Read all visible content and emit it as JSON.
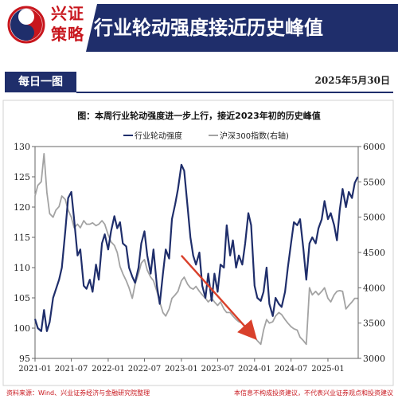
{
  "header": {
    "brand_line1": "兴证",
    "brand_line2": "策略",
    "title": "行业轮动强度接近历史峰值"
  },
  "banner": {
    "tab_label": "每日一图",
    "date": "2025年5月30日"
  },
  "chart_data": {
    "type": "line",
    "title": "图：本周行业轮动强度进一步上行，接近2023年初的历史峰值",
    "x_tick_labels": [
      "2021-01",
      "2021-07",
      "2022-01",
      "2022-07",
      "2023-01",
      "2023-07",
      "2024-01",
      "2024-07",
      "2025-01"
    ],
    "xlim": [
      "2021-01",
      "2025-06"
    ],
    "y_left": {
      "ylim": [
        95,
        130
      ],
      "ticks": [
        95,
        100,
        105,
        110,
        115,
        120,
        125,
        130
      ]
    },
    "y_right": {
      "ylim": [
        3000,
        6000
      ],
      "ticks": [
        3000,
        3500,
        4000,
        4500,
        5000,
        5500,
        6000
      ]
    },
    "series": [
      {
        "name": "行业轮动强度",
        "axis": "left",
        "color": "#1f2e6b",
        "points": [
          [
            "2021-01-01",
            101.5
          ],
          [
            "2021-01-15",
            100.0
          ],
          [
            "2021-02-01",
            99.5
          ],
          [
            "2021-02-15",
            103.0
          ],
          [
            "2021-03-01",
            99.5
          ],
          [
            "2021-03-15",
            101.0
          ],
          [
            "2021-04-01",
            105.0
          ],
          [
            "2021-05-01",
            108.0
          ],
          [
            "2021-05-15",
            110.0
          ],
          [
            "2021-06-01",
            116.0
          ],
          [
            "2021-06-15",
            121.5
          ],
          [
            "2021-07-01",
            122.5
          ],
          [
            "2021-07-15",
            118.0
          ],
          [
            "2021-08-01",
            112.0
          ],
          [
            "2021-08-15",
            113.0
          ],
          [
            "2021-09-01",
            107.0
          ],
          [
            "2021-09-15",
            106.5
          ],
          [
            "2021-10-01",
            108.0
          ],
          [
            "2021-10-15",
            106.0
          ],
          [
            "2021-11-01",
            110.5
          ],
          [
            "2021-11-15",
            108.0
          ],
          [
            "2021-12-01",
            114.0
          ],
          [
            "2021-12-15",
            115.5
          ],
          [
            "2022-01-01",
            113.0
          ],
          [
            "2022-01-15",
            116.0
          ],
          [
            "2022-02-01",
            118.5
          ],
          [
            "2022-02-15",
            116.5
          ],
          [
            "2022-03-01",
            117.5
          ],
          [
            "2022-03-15",
            114.0
          ],
          [
            "2022-04-01",
            113.5
          ],
          [
            "2022-04-15",
            110.0
          ],
          [
            "2022-05-01",
            108.5
          ],
          [
            "2022-05-15",
            107.5
          ],
          [
            "2022-06-01",
            110.0
          ],
          [
            "2022-06-15",
            114.0
          ],
          [
            "2022-07-01",
            116.0
          ],
          [
            "2022-07-15",
            112.0
          ],
          [
            "2022-08-01",
            109.0
          ],
          [
            "2022-08-15",
            113.0
          ],
          [
            "2022-09-01",
            107.0
          ],
          [
            "2022-09-15",
            104.0
          ],
          [
            "2022-10-01",
            109.0
          ],
          [
            "2022-10-15",
            113.0
          ],
          [
            "2022-11-01",
            111.5
          ],
          [
            "2022-11-15",
            118.0
          ],
          [
            "2022-12-01",
            120.5
          ],
          [
            "2022-12-15",
            123.0
          ],
          [
            "2023-01-01",
            127.0
          ],
          [
            "2023-01-15",
            126.0
          ],
          [
            "2023-02-01",
            120.0
          ],
          [
            "2023-02-15",
            115.0
          ],
          [
            "2023-03-01",
            112.0
          ],
          [
            "2023-03-15",
            110.5
          ],
          [
            "2023-04-01",
            112.5
          ],
          [
            "2023-04-15",
            107.0
          ],
          [
            "2023-05-01",
            105.0
          ],
          [
            "2023-05-15",
            109.0
          ],
          [
            "2023-06-01",
            104.5
          ],
          [
            "2023-06-15",
            109.0
          ],
          [
            "2023-07-01",
            106.0
          ],
          [
            "2023-07-15",
            110.5
          ],
          [
            "2023-08-01",
            110.0
          ],
          [
            "2023-08-15",
            117.0
          ],
          [
            "2023-09-01",
            112.0
          ],
          [
            "2023-09-15",
            114.5
          ],
          [
            "2023-10-01",
            110.0
          ],
          [
            "2023-10-15",
            112.0
          ],
          [
            "2023-11-01",
            110.5
          ],
          [
            "2023-11-15",
            114.0
          ],
          [
            "2023-12-01",
            119.0
          ],
          [
            "2023-12-15",
            117.0
          ],
          [
            "2024-01-01",
            107.0
          ],
          [
            "2024-01-15",
            105.0
          ],
          [
            "2024-02-01",
            104.5
          ],
          [
            "2024-02-15",
            106.0
          ],
          [
            "2024-03-01",
            110.0
          ],
          [
            "2024-03-15",
            104.0
          ],
          [
            "2024-04-01",
            102.0
          ],
          [
            "2024-04-15",
            105.0
          ],
          [
            "2024-05-01",
            104.0
          ],
          [
            "2024-05-15",
            103.5
          ],
          [
            "2024-06-01",
            106.0
          ],
          [
            "2024-06-15",
            110.0
          ],
          [
            "2024-07-01",
            114.0
          ],
          [
            "2024-07-15",
            117.5
          ],
          [
            "2024-08-01",
            117.0
          ],
          [
            "2024-08-15",
            118.0
          ],
          [
            "2024-09-01",
            113.0
          ],
          [
            "2024-09-15",
            108.0
          ],
          [
            "2024-10-01",
            114.0
          ],
          [
            "2024-10-15",
            115.0
          ],
          [
            "2024-11-01",
            114.0
          ],
          [
            "2024-11-15",
            116.5
          ],
          [
            "2024-12-01",
            118.0
          ],
          [
            "2024-12-15",
            121.0
          ],
          [
            "2025-01-01",
            118.0
          ],
          [
            "2025-01-15",
            119.0
          ],
          [
            "2025-02-01",
            117.0
          ],
          [
            "2025-02-15",
            114.5
          ],
          [
            "2025-03-01",
            119.5
          ],
          [
            "2025-03-15",
            123.0
          ],
          [
            "2025-04-01",
            120.0
          ],
          [
            "2025-04-15",
            122.5
          ],
          [
            "2025-05-01",
            121.5
          ],
          [
            "2025-05-15",
            124.0
          ],
          [
            "2025-05-30",
            125.0
          ]
        ]
      },
      {
        "name": "沪深300指数(右轴)",
        "axis": "right",
        "color": "#a3a3a3",
        "points": [
          [
            "2021-01-01",
            5300
          ],
          [
            "2021-01-15",
            5450
          ],
          [
            "2021-02-01",
            5500
          ],
          [
            "2021-02-15",
            5900
          ],
          [
            "2021-03-01",
            5350
          ],
          [
            "2021-03-15",
            5050
          ],
          [
            "2021-04-01",
            5000
          ],
          [
            "2021-04-15",
            5100
          ],
          [
            "2021-05-01",
            5150
          ],
          [
            "2021-05-15",
            5300
          ],
          [
            "2021-06-01",
            5250
          ],
          [
            "2021-06-15",
            5100
          ],
          [
            "2021-07-01",
            5000
          ],
          [
            "2021-07-15",
            4850
          ],
          [
            "2021-08-01",
            4900
          ],
          [
            "2021-08-15",
            4850
          ],
          [
            "2021-09-01",
            4950
          ],
          [
            "2021-09-15",
            4900
          ],
          [
            "2021-10-01",
            4900
          ],
          [
            "2021-10-15",
            4920
          ],
          [
            "2021-11-01",
            4880
          ],
          [
            "2021-11-15",
            4900
          ],
          [
            "2021-12-01",
            4950
          ],
          [
            "2021-12-15",
            4900
          ],
          [
            "2022-01-01",
            4750
          ],
          [
            "2022-01-15",
            4650
          ],
          [
            "2022-02-01",
            4600
          ],
          [
            "2022-02-15",
            4500
          ],
          [
            "2022-03-01",
            4300
          ],
          [
            "2022-03-15",
            4200
          ],
          [
            "2022-04-01",
            4100
          ],
          [
            "2022-04-15",
            4000
          ],
          [
            "2022-05-01",
            3850
          ],
          [
            "2022-05-15",
            4050
          ],
          [
            "2022-06-01",
            4200
          ],
          [
            "2022-06-15",
            4350
          ],
          [
            "2022-07-01",
            4400
          ],
          [
            "2022-07-15",
            4250
          ],
          [
            "2022-08-01",
            4150
          ],
          [
            "2022-08-15",
            4100
          ],
          [
            "2022-09-01",
            3950
          ],
          [
            "2022-09-15",
            3800
          ],
          [
            "2022-10-01",
            3650
          ],
          [
            "2022-10-15",
            3600
          ],
          [
            "2022-11-01",
            3700
          ],
          [
            "2022-11-15",
            3850
          ],
          [
            "2022-12-01",
            3900
          ],
          [
            "2022-12-15",
            3950
          ],
          [
            "2023-01-01",
            4100
          ],
          [
            "2023-01-15",
            4150
          ],
          [
            "2023-02-01",
            4050
          ],
          [
            "2023-02-15",
            4000
          ],
          [
            "2023-03-01",
            3980
          ],
          [
            "2023-03-15",
            4020
          ],
          [
            "2023-04-01",
            3950
          ],
          [
            "2023-04-15",
            3900
          ],
          [
            "2023-05-01",
            3850
          ],
          [
            "2023-05-15",
            3800
          ],
          [
            "2023-06-01",
            3850
          ],
          [
            "2023-06-15",
            3800
          ],
          [
            "2023-07-01",
            3750
          ],
          [
            "2023-07-15",
            3800
          ],
          [
            "2023-08-01",
            3700
          ],
          [
            "2023-08-15",
            3650
          ],
          [
            "2023-09-01",
            3650
          ],
          [
            "2023-09-15",
            3600
          ],
          [
            "2023-10-01",
            3550
          ],
          [
            "2023-10-15",
            3520
          ],
          [
            "2023-11-01",
            3500
          ],
          [
            "2023-11-15",
            3450
          ],
          [
            "2023-12-01",
            3400
          ],
          [
            "2023-12-15",
            3350
          ],
          [
            "2024-01-01",
            3300
          ],
          [
            "2024-01-15",
            3250
          ],
          [
            "2024-02-01",
            3200
          ],
          [
            "2024-02-15",
            3400
          ],
          [
            "2024-03-01",
            3550
          ],
          [
            "2024-03-15",
            3500
          ],
          [
            "2024-04-01",
            3520
          ],
          [
            "2024-04-15",
            3600
          ],
          [
            "2024-05-01",
            3650
          ],
          [
            "2024-05-15",
            3620
          ],
          [
            "2024-06-01",
            3550
          ],
          [
            "2024-06-15",
            3500
          ],
          [
            "2024-07-01",
            3450
          ],
          [
            "2024-07-15",
            3420
          ],
          [
            "2024-08-01",
            3400
          ],
          [
            "2024-08-15",
            3300
          ],
          [
            "2024-09-01",
            3250
          ],
          [
            "2024-09-15",
            3200
          ],
          [
            "2024-10-01",
            4000
          ],
          [
            "2024-10-15",
            3900
          ],
          [
            "2024-11-01",
            3950
          ],
          [
            "2024-11-15",
            3900
          ],
          [
            "2024-12-01",
            3950
          ],
          [
            "2024-12-15",
            4000
          ],
          [
            "2025-01-01",
            3850
          ],
          [
            "2025-01-15",
            3800
          ],
          [
            "2025-02-01",
            3900
          ],
          [
            "2025-02-15",
            3950
          ],
          [
            "2025-03-01",
            3960
          ],
          [
            "2025-03-15",
            3950
          ],
          [
            "2025-04-01",
            3700
          ],
          [
            "2025-04-15",
            3750
          ],
          [
            "2025-05-01",
            3800
          ],
          [
            "2025-05-15",
            3850
          ],
          [
            "2025-05-30",
            3850
          ]
        ]
      }
    ],
    "annotation": {
      "type": "arrow",
      "color": "#d9402b",
      "from": [
        "2023-01-01",
        112.0
      ],
      "to": [
        "2024-01-01",
        98.5
      ]
    }
  },
  "footer": {
    "source": "资料来源：Wind、兴业证券经济与金融研究院整理",
    "disclaimer": "本信息不构成投资建议，不代表兴业证券观点和投资建议"
  }
}
